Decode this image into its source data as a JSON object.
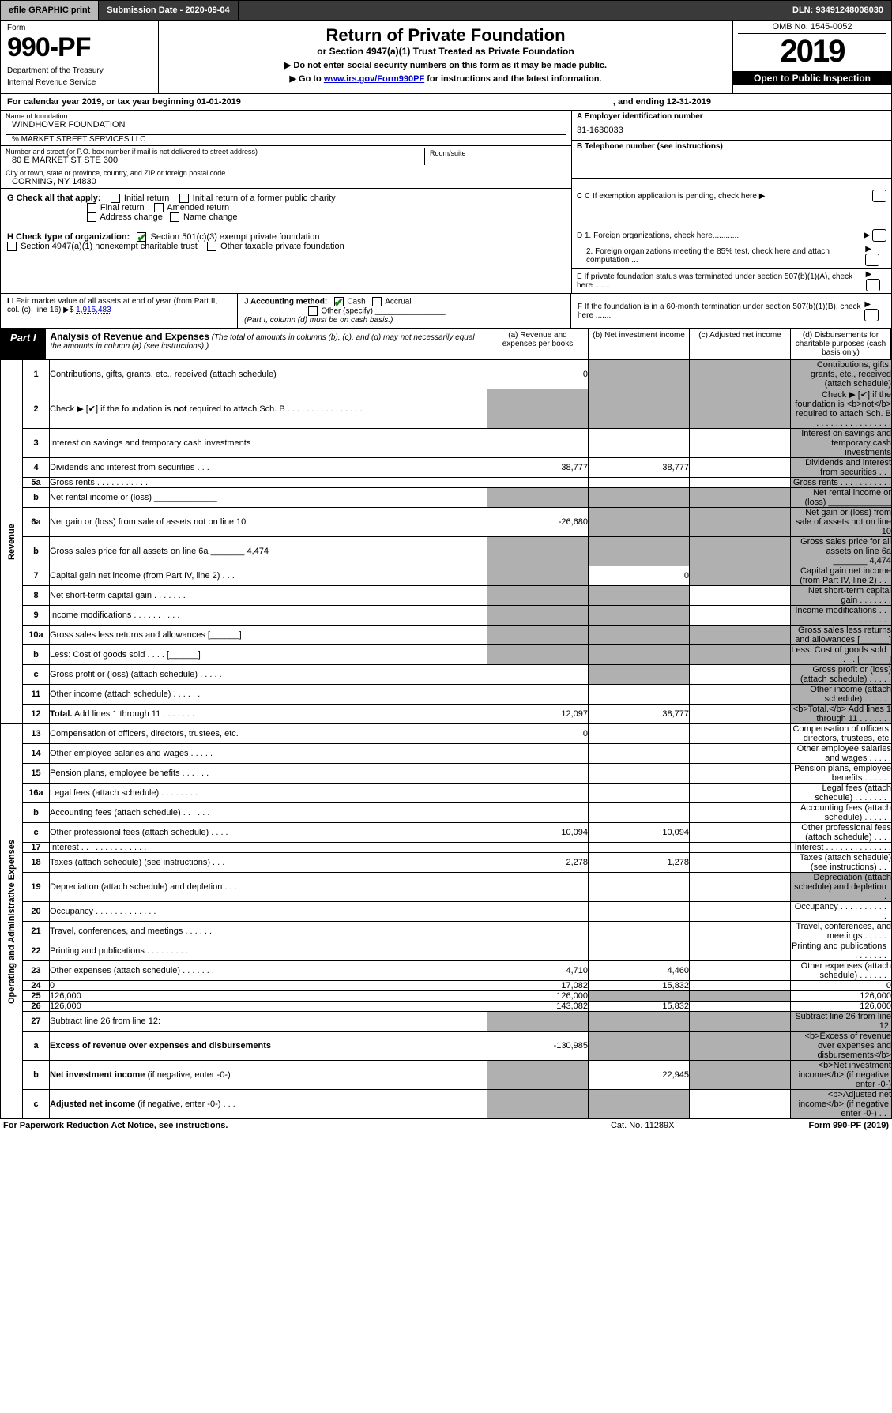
{
  "topbar": {
    "efile": "efile GRAPHIC print",
    "submission": "Submission Date - 2020-09-04",
    "dln": "DLN: 93491248008030"
  },
  "header": {
    "form_label": "Form",
    "form_number": "990-PF",
    "dept1": "Department of the Treasury",
    "dept2": "Internal Revenue Service",
    "title": "Return of Private Foundation",
    "subtitle": "or Section 4947(a)(1) Trust Treated as Private Foundation",
    "note1": "▶ Do not enter social security numbers on this form as it may be made public.",
    "note2_pre": "▶ Go to ",
    "note2_link": "www.irs.gov/Form990PF",
    "note2_post": " for instructions and the latest information.",
    "omb": "OMB No. 1545-0052",
    "year": "2019",
    "open": "Open to Public Inspection"
  },
  "calendar": {
    "text": "For calendar year 2019, or tax year beginning 01-01-2019",
    "end": ", and ending 12-31-2019"
  },
  "info": {
    "name_lbl": "Name of foundation",
    "name": "WINDHOVER FOUNDATION",
    "care_of": "% MARKET STREET SERVICES LLC",
    "street_lbl": "Number and street (or P.O. box number if mail is not delivered to street address)",
    "street": "80 E MARKET ST STE 300",
    "room_lbl": "Room/suite",
    "city_lbl": "City or town, state or province, country, and ZIP or foreign postal code",
    "city": "CORNING, NY  14830",
    "ein_lbl": "A Employer identification number",
    "ein": "31-1630033",
    "phone_lbl": "B Telephone number (see instructions)",
    "c_text": "C If exemption application is pending, check here",
    "d1": "D 1. Foreign organizations, check here............",
    "d2": "2. Foreign organizations meeting the 85% test, check here and attach computation ...",
    "e": "E  If private foundation status was terminated under section 507(b)(1)(A), check here .......",
    "f": "F  If the foundation is in a 60-month termination under section 507(b)(1)(B), check here .......",
    "g_label": "G Check all that apply:",
    "g_opts": [
      "Initial return",
      "Initial return of a former public charity",
      "Final return",
      "Amended return",
      "Address change",
      "Name change"
    ],
    "h_label": "H Check type of organization:",
    "h1": "Section 501(c)(3) exempt private foundation",
    "h2": "Section 4947(a)(1) nonexempt charitable trust",
    "h3": "Other taxable private foundation",
    "i_label": "I Fair market value of all assets at end of year (from Part II, col. (c), line 16) ▶$  ",
    "i_val": "1,915,483",
    "j_label": "J Accounting method:",
    "j_cash": "Cash",
    "j_accrual": "Accrual",
    "j_other": "Other (specify)",
    "j_note": "(Part I, column (d) must be on cash basis.)"
  },
  "part1": {
    "badge": "Part I",
    "title": "Analysis of Revenue and Expenses",
    "title_note": " (The total of amounts in columns (b), (c), and (d) may not necessarily equal the amounts in column (a) (see instructions).)",
    "col_a": "(a)    Revenue and expenses per books",
    "col_b": "(b)   Net investment income",
    "col_c": "(c)   Adjusted net income",
    "col_d": "(d)   Disbursements for charitable purposes (cash basis only)",
    "side_rev": "Revenue",
    "side_exp": "Operating and Administrative Expenses"
  },
  "rows": [
    {
      "n": "1",
      "d": "Contributions, gifts, grants, etc., received (attach schedule)",
      "a": "0",
      "b_shade": true,
      "c_shade": true,
      "d_shade": true
    },
    {
      "n": "2",
      "d": "Check ▶ [✔] if the foundation is <b>not</b> required to attach Sch. B  .  .  .  .  .  .  .  .  .  .  .  .  .  .  .  .",
      "a_shade": true,
      "b_shade": true,
      "c_shade": true,
      "d_shade": true
    },
    {
      "n": "3",
      "d": "Interest on savings and temporary cash investments",
      "c_shade": false,
      "d_shade": true
    },
    {
      "n": "4",
      "d": "Dividends and interest from securities   .  .  .",
      "a": "38,777",
      "b": "38,777",
      "d_shade": true
    },
    {
      "n": "5a",
      "d": "Gross rents   .  .  .  .  .  .  .  .  .  .  .",
      "d_shade": true
    },
    {
      "n": "b",
      "d": "Net rental income or (loss)  _____________",
      "a_shade": true,
      "b_shade": true,
      "c_shade": true,
      "d_shade": true
    },
    {
      "n": "6a",
      "d": "Net gain or (loss) from sale of assets not on line 10",
      "a": "-26,680",
      "b_shade": true,
      "c_shade": true,
      "d_shade": true
    },
    {
      "n": "b",
      "d": "Gross sales price for all assets on line 6a _______ 4,474",
      "a_shade": true,
      "b_shade": true,
      "c_shade": true,
      "d_shade": true
    },
    {
      "n": "7",
      "d": "Capital gain net income (from Part IV, line 2)   .  .  .",
      "a_shade": true,
      "b": "0",
      "c_shade": true,
      "d_shade": true
    },
    {
      "n": "8",
      "d": "Net short-term capital gain  .  .  .  .  .  .  .",
      "a_shade": true,
      "b_shade": true,
      "d_shade": true
    },
    {
      "n": "9",
      "d": "Income modifications .  .  .  .  .  .  .  .  .  .",
      "a_shade": true,
      "b_shade": true,
      "d_shade": true
    },
    {
      "n": "10a",
      "d": "Gross sales less returns and allowances  [______]",
      "a_shade": true,
      "b_shade": true,
      "c_shade": true,
      "d_shade": true
    },
    {
      "n": "b",
      "d": "Less: Cost of goods sold    .  .  .  .   [______]",
      "a_shade": true,
      "b_shade": true,
      "c_shade": true,
      "d_shade": true
    },
    {
      "n": "c",
      "d": "Gross profit or (loss) (attach schedule)   .  .  .  .  .",
      "a_shade": false,
      "b_shade": true,
      "d_shade": true
    },
    {
      "n": "11",
      "d": "Other income (attach schedule)   .  .  .  .  .  .",
      "d_shade": true
    },
    {
      "n": "12",
      "d": "<b>Total.</b> Add lines 1 through 11   .  .  .  .  .  .  .",
      "a": "12,097",
      "b": "38,777",
      "d_shade": true
    },
    {
      "n": "13",
      "d": "Compensation of officers, directors, trustees, etc.",
      "a": "0"
    },
    {
      "n": "14",
      "d": "Other employee salaries and wages   .  .  .  .  ."
    },
    {
      "n": "15",
      "d": "Pension plans, employee benefits   .  .  .  .  .  ."
    },
    {
      "n": "16a",
      "d": "Legal fees (attach schedule)  .  .  .  .  .  .  .  ."
    },
    {
      "n": "b",
      "d": "Accounting fees (attach schedule)  .  .  .  .  .  ."
    },
    {
      "n": "c",
      "d": "Other professional fees (attach schedule)   .  .  .  .",
      "a": "10,094",
      "b": "10,094"
    },
    {
      "n": "17",
      "d": "Interest  .  .  .  .  .  .  .  .  .  .  .  .  .  ."
    },
    {
      "n": "18",
      "d": "Taxes (attach schedule) (see instructions)   .  .  .",
      "a": "2,278",
      "b": "1,278"
    },
    {
      "n": "19",
      "d": "Depreciation (attach schedule) and depletion   .  .  .",
      "d_shade": true
    },
    {
      "n": "20",
      "d": "Occupancy .  .  .  .  .  .  .  .  .  .  .  .  ."
    },
    {
      "n": "21",
      "d": "Travel, conferences, and meetings  .  .  .  .  .  ."
    },
    {
      "n": "22",
      "d": "Printing and publications  .  .  .  .  .  .  .  .  ."
    },
    {
      "n": "23",
      "d": "Other expenses (attach schedule)  .  .  .  .  .  .  .",
      "a": "4,710",
      "b": "4,460"
    },
    {
      "n": "24",
      "d": "0",
      "a": "17,082",
      "b": "15,832"
    },
    {
      "n": "25",
      "d": "126,000",
      "a": "126,000",
      "b_shade": true,
      "c_shade": true
    },
    {
      "n": "26",
      "d": "126,000",
      "a": "143,082",
      "b": "15,832"
    },
    {
      "n": "27",
      "d": "Subtract line 26 from line 12:",
      "a_shade": true,
      "b_shade": true,
      "c_shade": true,
      "d_shade": true
    },
    {
      "n": "a",
      "d": "<b>Excess of revenue over expenses and disbursements</b>",
      "a": "-130,985",
      "b_shade": true,
      "c_shade": true,
      "d_shade": true
    },
    {
      "n": "b",
      "d": "<b>Net investment income</b> (if negative, enter -0-)",
      "a_shade": true,
      "b": "22,945",
      "c_shade": true,
      "d_shade": true
    },
    {
      "n": "c",
      "d": "<b>Adjusted net income</b> (if negative, enter -0-)   .  .  .",
      "a_shade": true,
      "b_shade": true,
      "d_shade": true
    }
  ],
  "footer": {
    "left": "For Paperwork Reduction Act Notice, see instructions.",
    "mid": "Cat. No. 11289X",
    "right": "Form 990-PF (2019)"
  },
  "colors": {
    "shade": "#b0b0b0",
    "link": "#0000cc",
    "check": "#1a7f1a"
  }
}
